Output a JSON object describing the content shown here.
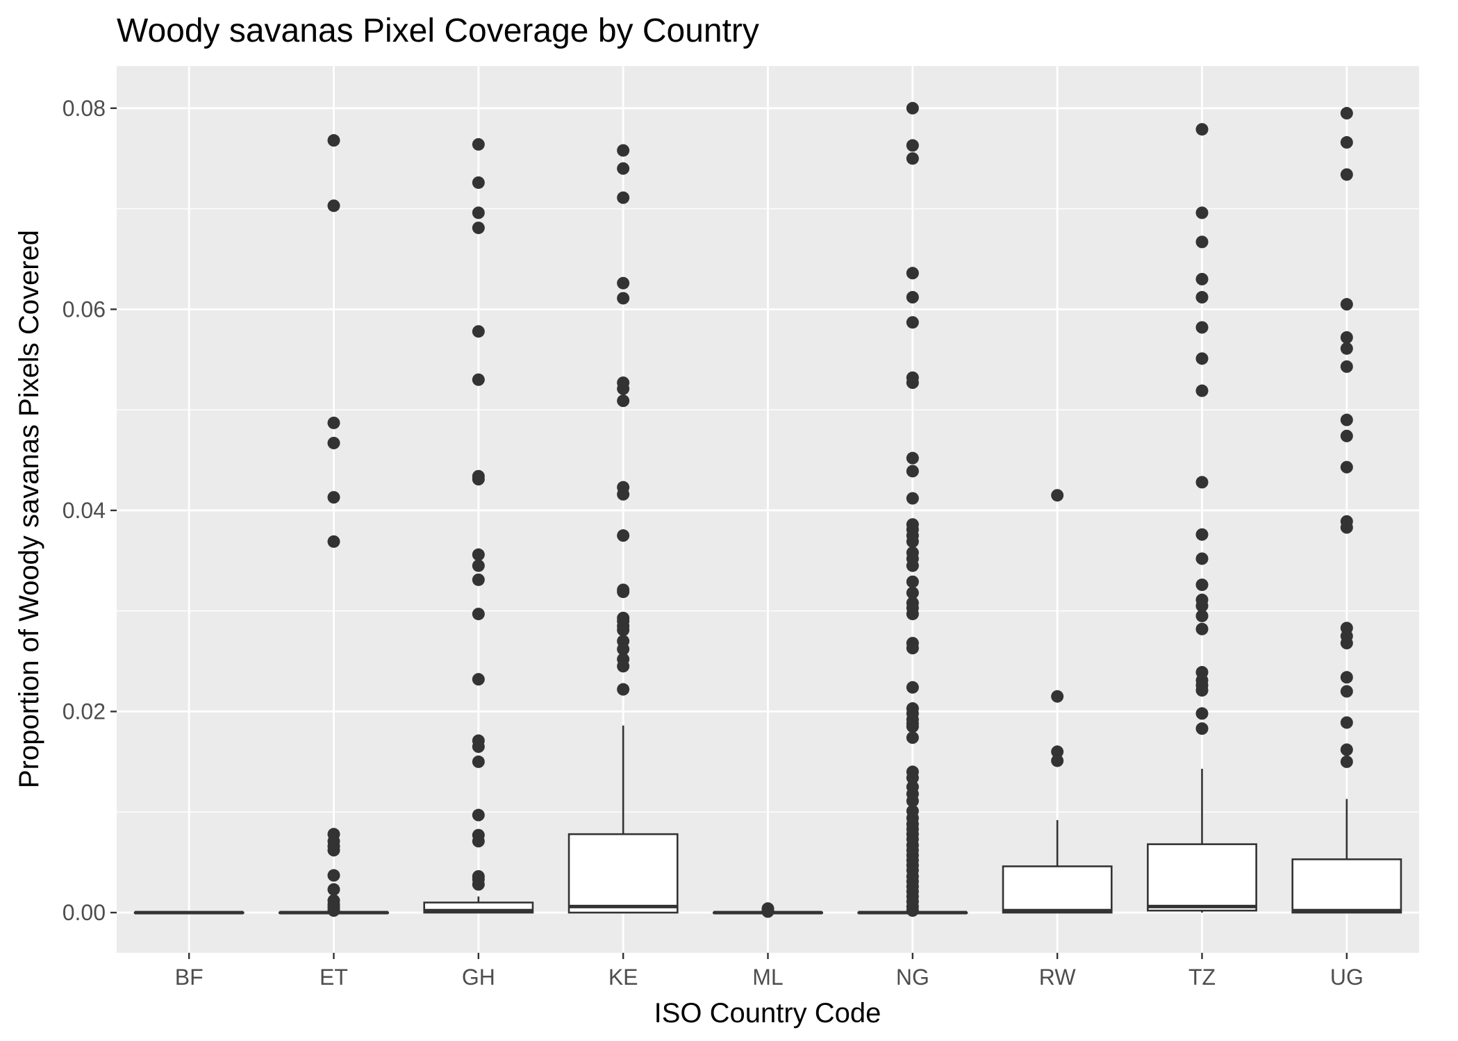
{
  "chart_data": {
    "type": "boxplot",
    "title": "Woody savanas Pixel Coverage by Country",
    "xlabel": "ISO Country Code",
    "ylabel": "Proportion of Woody savanas Pixels Covered",
    "ylim": [
      -0.004,
      0.0842
    ],
    "yticks": [
      0.0,
      0.02,
      0.04,
      0.06,
      0.08
    ],
    "ytick_labels": [
      "0.00",
      "0.02",
      "0.04",
      "0.06",
      "0.08"
    ],
    "grid": true,
    "categories": [
      "BF",
      "ET",
      "GH",
      "KE",
      "ML",
      "NG",
      "RW",
      "TZ",
      "UG"
    ],
    "boxes": [
      {
        "q1": 0.0,
        "median": 0.0,
        "q3": 0.0,
        "whisker_low": 0.0,
        "whisker_high": 0.0,
        "outliers": []
      },
      {
        "q1": 0.0,
        "median": 0.0,
        "q3": 0.0,
        "whisker_low": 0.0,
        "whisker_high": 0.0,
        "outliers": [
          0.0768,
          0.0703,
          0.0487,
          0.0467,
          0.0413,
          0.0369,
          0.0078,
          0.0071,
          0.0066,
          0.0062,
          0.0037,
          0.0023,
          0.0012,
          0.0008,
          0.0005,
          0.0002
        ]
      },
      {
        "q1": 0.0,
        "median": 0.0002,
        "q3": 0.001,
        "whisker_low": 0.0,
        "whisker_high": 0.0016,
        "outliers": [
          0.0764,
          0.0726,
          0.0696,
          0.0681,
          0.0578,
          0.053,
          0.0434,
          0.0431,
          0.0356,
          0.0345,
          0.0331,
          0.0297,
          0.0232,
          0.0171,
          0.0165,
          0.015,
          0.0097,
          0.0077,
          0.0071,
          0.0036,
          0.0033,
          0.0028
        ]
      },
      {
        "q1": 0.0,
        "median": 0.0006,
        "q3": 0.0078,
        "whisker_low": 0.0,
        "whisker_high": 0.0186,
        "outliers": [
          0.0758,
          0.074,
          0.0711,
          0.0626,
          0.0611,
          0.0527,
          0.0521,
          0.0509,
          0.0423,
          0.0416,
          0.0375,
          0.0321,
          0.0319,
          0.0293,
          0.029,
          0.0285,
          0.0281,
          0.027,
          0.0262,
          0.0252,
          0.0245,
          0.0222
        ]
      },
      {
        "q1": 0.0,
        "median": 0.0,
        "q3": 0.0,
        "whisker_low": 0.0,
        "whisker_high": 0.0,
        "outliers": [
          0.0004,
          0.0002,
          0.0001
        ]
      },
      {
        "q1": 0.0,
        "median": 0.0,
        "q3": 0.0,
        "whisker_low": 0.0,
        "whisker_high": 0.0,
        "outliers": [
          0.08,
          0.0763,
          0.075,
          0.0636,
          0.0612,
          0.0587,
          0.0532,
          0.0527,
          0.0452,
          0.0439,
          0.0412,
          0.0386,
          0.0381,
          0.0375,
          0.0369,
          0.0358,
          0.0352,
          0.0345,
          0.0329,
          0.0318,
          0.0308,
          0.0303,
          0.0297,
          0.0268,
          0.0263,
          0.0224,
          0.0203,
          0.0198,
          0.0192,
          0.0188,
          0.0185,
          0.0174,
          0.014,
          0.0134,
          0.0125,
          0.0118,
          0.0111,
          0.0101,
          0.0094,
          0.0088,
          0.0083,
          0.0078,
          0.0073,
          0.0067,
          0.0062,
          0.0057,
          0.0052,
          0.0047,
          0.0042,
          0.0036,
          0.0031,
          0.0026,
          0.0021,
          0.0016,
          0.0011,
          0.0006,
          0.0002
        ]
      },
      {
        "q1": 0.0,
        "median": 0.0002,
        "q3": 0.0046,
        "whisker_low": 0.0,
        "whisker_high": 0.0092,
        "outliers": [
          0.0415,
          0.0215,
          0.016,
          0.0151
        ]
      },
      {
        "q1": 0.0002,
        "median": 0.0006,
        "q3": 0.0068,
        "whisker_low": 0.0,
        "whisker_high": 0.0143,
        "outliers": [
          0.0779,
          0.0696,
          0.0667,
          0.063,
          0.0612,
          0.0582,
          0.0551,
          0.0519,
          0.0428,
          0.0376,
          0.0352,
          0.0326,
          0.0311,
          0.0305,
          0.0295,
          0.0282,
          0.0239,
          0.0231,
          0.0226,
          0.0221,
          0.0198,
          0.0183
        ]
      },
      {
        "q1": 0.0,
        "median": 0.0002,
        "q3": 0.0053,
        "whisker_low": 0.0,
        "whisker_high": 0.0113,
        "outliers": [
          0.0795,
          0.0766,
          0.0734,
          0.0605,
          0.0572,
          0.0561,
          0.0543,
          0.049,
          0.0474,
          0.0443,
          0.0389,
          0.0383,
          0.0283,
          0.0275,
          0.0268,
          0.0234,
          0.022,
          0.0189,
          0.0162,
          0.015
        ]
      }
    ]
  }
}
